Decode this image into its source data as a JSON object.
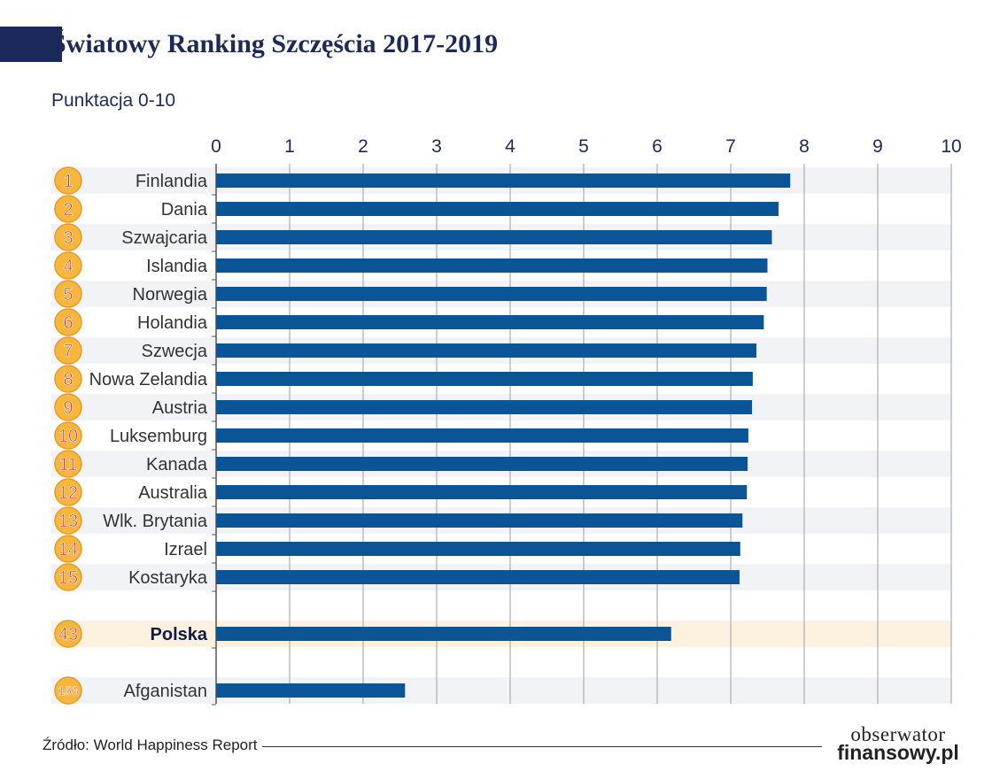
{
  "title": "Światowy Ranking Szczęścia 2017-2019",
  "subtitle": "Punktacja 0-10",
  "footer": {
    "source": "Źródło: World Happiness Report",
    "logo_line1": "obserwator",
    "logo_line2": "finansowy.pl"
  },
  "colors": {
    "bar": "#0b5596",
    "badge_fill": "#f6b73c",
    "badge_text": "#d8322d",
    "highlight_row": "#fdf1df",
    "band_row": "#f1f3f6",
    "title": "#1b2a5a"
  },
  "chart_data": {
    "type": "bar",
    "orientation": "horizontal",
    "title": "Światowy Ranking Szczęścia 2017-2019",
    "subtitle": "Punktacja 0-10",
    "xlim": [
      0,
      10
    ],
    "x_ticks": [
      "0",
      "1",
      "2",
      "3",
      "4",
      "5",
      "6",
      "7",
      "8",
      "9",
      "10"
    ],
    "grid": true,
    "categories": [
      "Finlandia",
      "Dania",
      "Szwajcaria",
      "Islandia",
      "Norwegia",
      "Holandia",
      "Szwecja",
      "Nowa Zelandia",
      "Austria",
      "Luksemburg",
      "Kanada",
      "Australia",
      "Wlk. Brytania",
      "Izrael",
      "Kostaryka",
      "Polska",
      "Afganistan"
    ],
    "ranks": [
      "1",
      "2",
      "3",
      "4",
      "5",
      "6",
      "7",
      "8",
      "9",
      "10",
      "11",
      "12",
      "13",
      "14",
      "15",
      "43",
      "153"
    ],
    "values": [
      7.81,
      7.65,
      7.56,
      7.5,
      7.49,
      7.45,
      7.35,
      7.3,
      7.29,
      7.24,
      7.23,
      7.22,
      7.16,
      7.13,
      7.12,
      6.19,
      2.57
    ],
    "highlight": "Polska"
  }
}
